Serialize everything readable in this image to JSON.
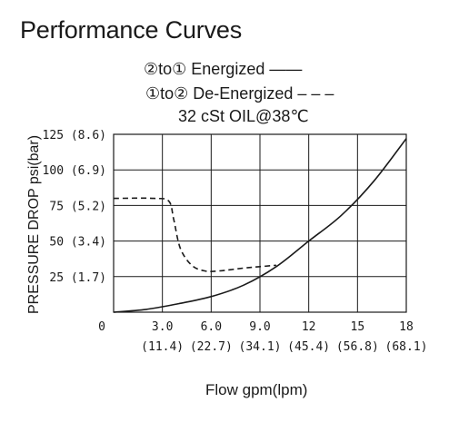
{
  "header": {
    "title": "Performance Curves",
    "legend_energized": "②to① Energized ——",
    "legend_deenergized": "①to② De-Energized – – –",
    "oil_note": "32 cSt OIL@38℃"
  },
  "chart_data": {
    "type": "line",
    "title": "Performance Curves",
    "xlabel": "Flow gpm(lpm)",
    "ylabel": "PRESSURE DROP psi(bar)",
    "xlim": [
      0,
      18
    ],
    "ylim": [
      0,
      125
    ],
    "grid": true,
    "x_ticks": [
      {
        "value": 0,
        "label": "0",
        "sublabel": ""
      },
      {
        "value": 3,
        "label": "3.0",
        "sublabel": "(11.4)"
      },
      {
        "value": 6,
        "label": "6.0",
        "sublabel": "(22.7)"
      },
      {
        "value": 9,
        "label": "9.0",
        "sublabel": "(34.1)"
      },
      {
        "value": 12,
        "label": "12",
        "sublabel": "(45.4)"
      },
      {
        "value": 15,
        "label": "15",
        "sublabel": "(56.8)"
      },
      {
        "value": 18,
        "label": "18",
        "sublabel": "(68.1)"
      }
    ],
    "y_ticks": [
      {
        "value": 25,
        "label": "25 (1.7)"
      },
      {
        "value": 50,
        "label": "50 (3.4)"
      },
      {
        "value": 75,
        "label": "75 (5.2)"
      },
      {
        "value": 100,
        "label": "100 (6.9)"
      },
      {
        "value": 125,
        "label": "125 (8.6)"
      }
    ],
    "series": [
      {
        "name": "②to① Energized",
        "style": "solid",
        "color": "#1a1a1a",
        "points": [
          [
            0,
            0
          ],
          [
            2,
            2
          ],
          [
            4,
            6
          ],
          [
            6,
            11
          ],
          [
            8,
            19
          ],
          [
            10,
            32
          ],
          [
            12,
            50
          ],
          [
            14,
            68
          ],
          [
            16,
            92
          ],
          [
            18,
            122
          ]
        ]
      },
      {
        "name": "①to② De-Energized",
        "style": "dashed",
        "color": "#1a1a1a",
        "points": [
          [
            0,
            80
          ],
          [
            2.5,
            80
          ],
          [
            3.4,
            78
          ],
          [
            3.7,
            65
          ],
          [
            4.1,
            45
          ],
          [
            4.8,
            33
          ],
          [
            5.6,
            29
          ],
          [
            6.5,
            29
          ],
          [
            8,
            31
          ],
          [
            9,
            32
          ],
          [
            10,
            33
          ]
        ]
      }
    ]
  }
}
